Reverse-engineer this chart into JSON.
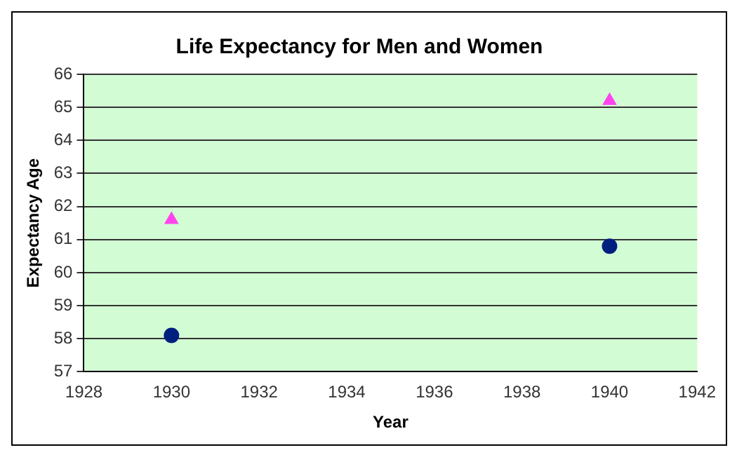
{
  "chart_data": {
    "type": "scatter",
    "title": "Life Expectancy for Men and Women",
    "xlabel": "Year",
    "ylabel": "Expectancy Age",
    "x": [
      1930,
      1940
    ],
    "series": [
      {
        "color": "#ff44ee",
        "marker": "triangle",
        "values": [
          61.6,
          65.2
        ]
      },
      {
        "color": "#002080",
        "marker": "circle",
        "values": [
          58.1,
          60.8
        ]
      }
    ],
    "xlim": [
      1928,
      1942
    ],
    "xticks": [
      1928,
      1930,
      1932,
      1934,
      1936,
      1938,
      1940,
      1942
    ],
    "ylim": [
      57,
      66
    ],
    "yticks": [
      57,
      58,
      59,
      60,
      61,
      62,
      63,
      64,
      65,
      66
    ],
    "grid": "y",
    "legend": false
  }
}
